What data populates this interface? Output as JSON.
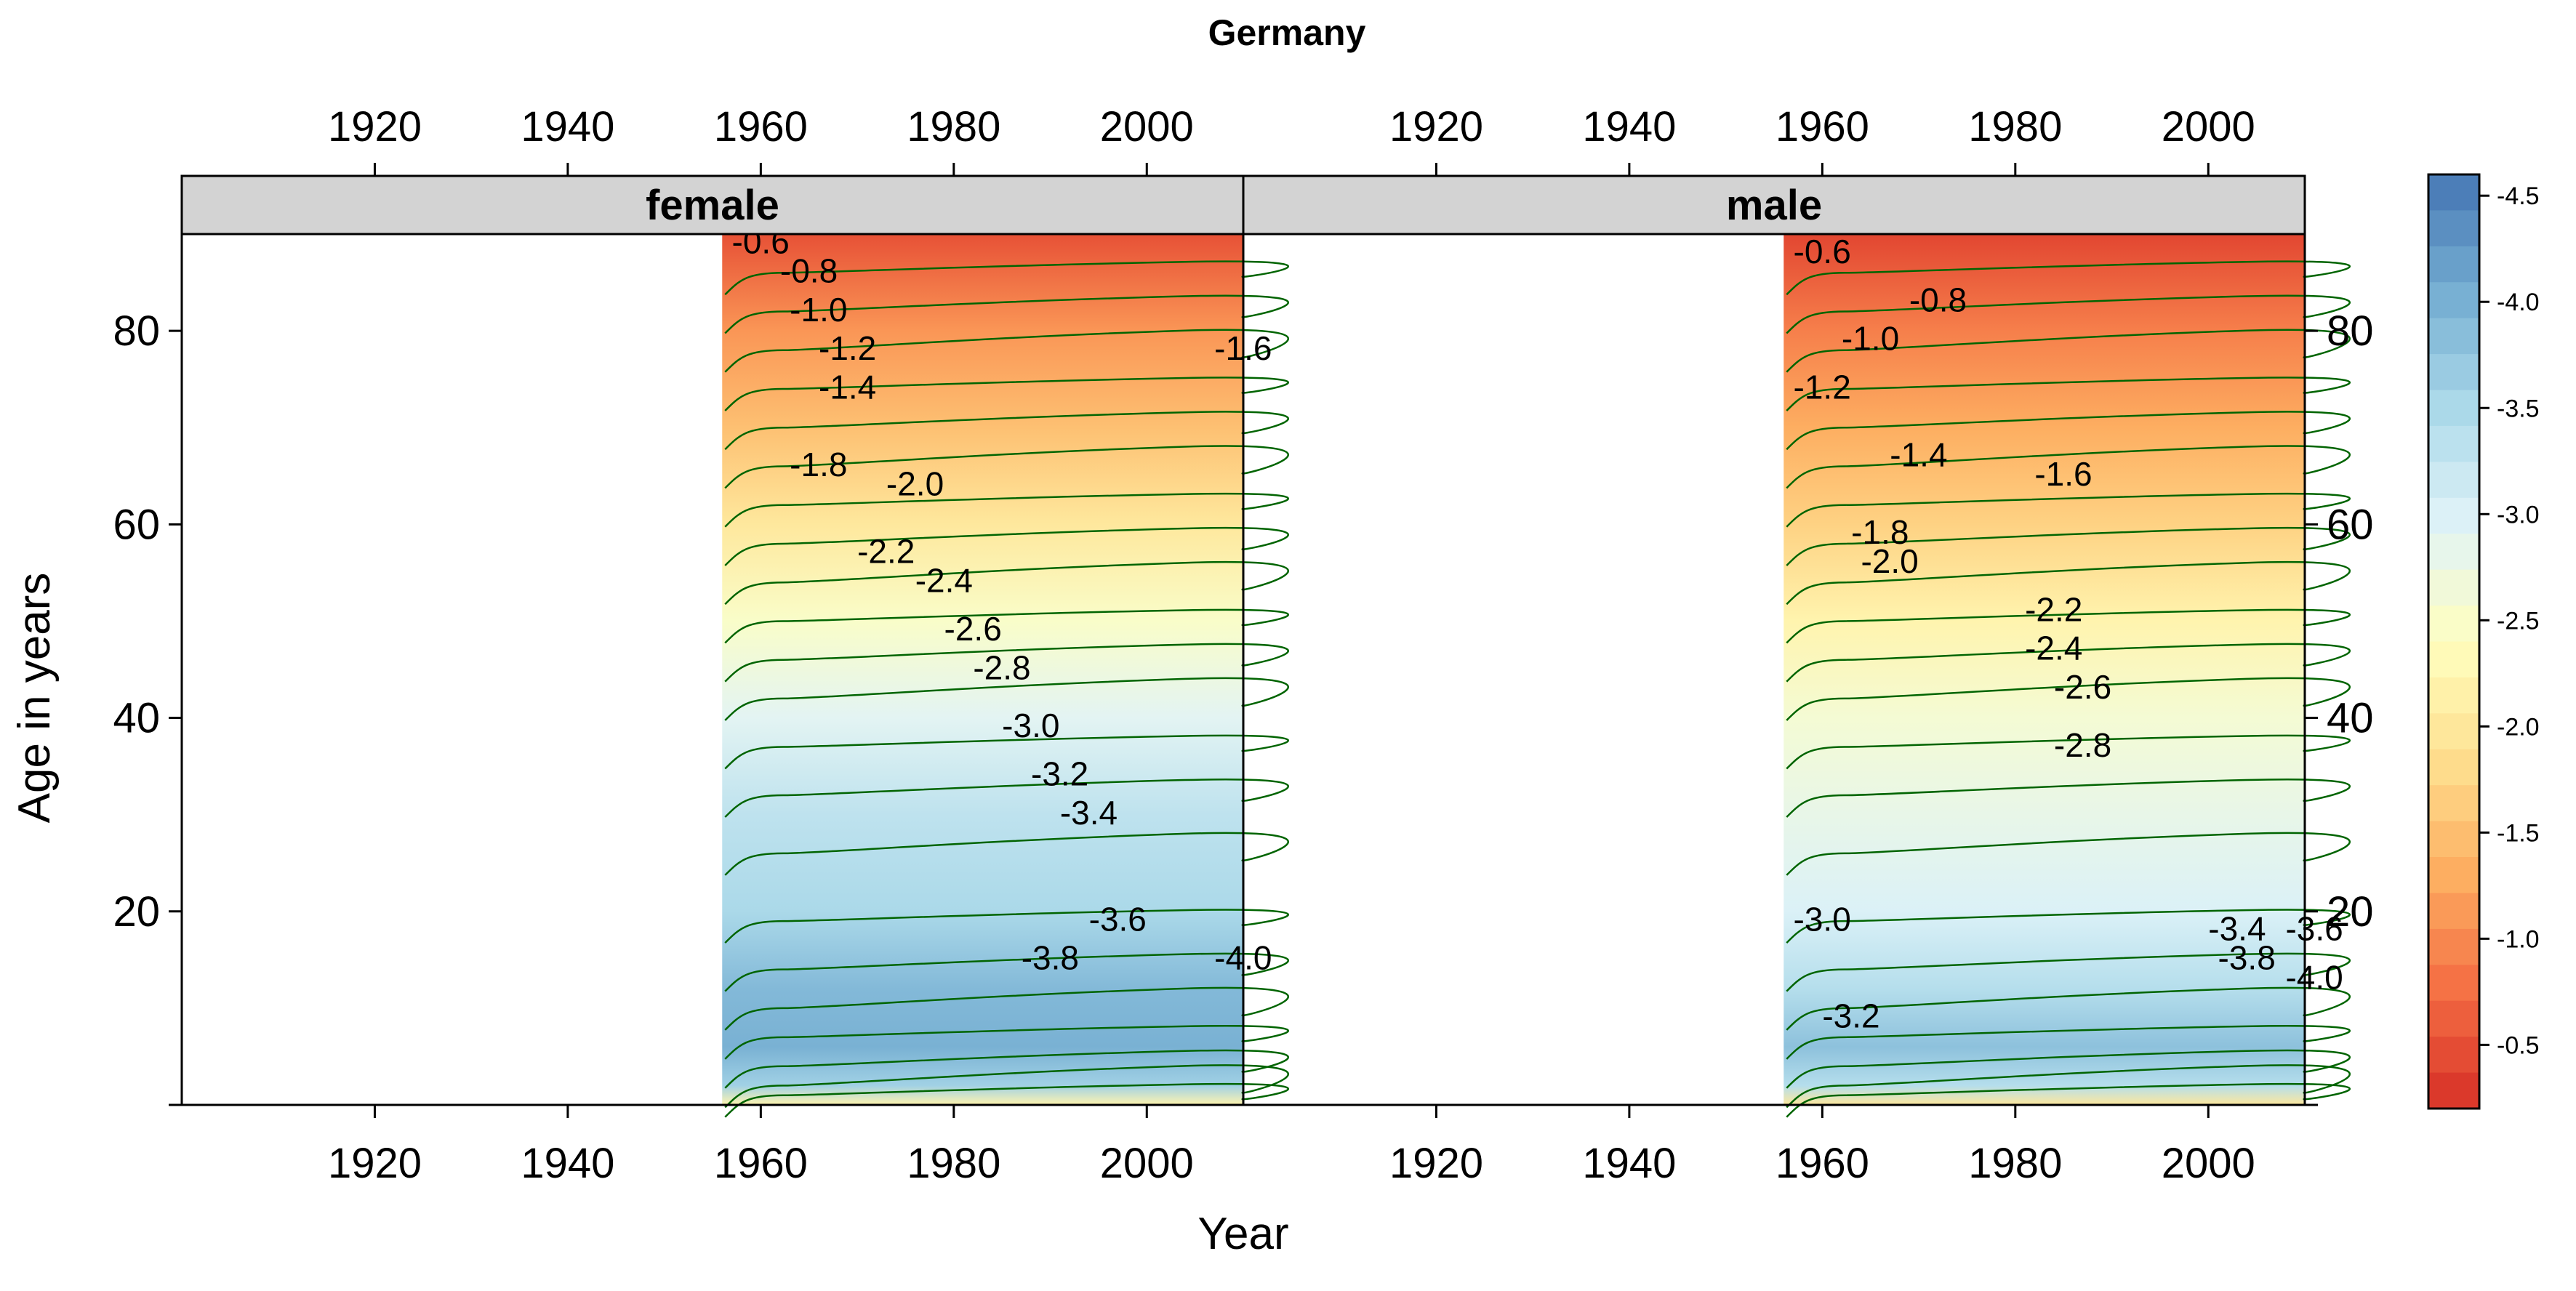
{
  "chart_data": {
    "type": "heatmap",
    "title": "Germany",
    "xlabel": "Year",
    "ylabel": "Age in years",
    "xlim": [
      1900,
      2010
    ],
    "ylim": [
      0,
      90
    ],
    "x_ticks": [
      1920,
      1940,
      1960,
      1980,
      2000
    ],
    "y_ticks": [
      20,
      40,
      60,
      80
    ],
    "data_x_range": [
      1956,
      2010
    ],
    "colorbar": {
      "range": [
        -4.6,
        -0.2
      ],
      "ticks": [
        -0.5,
        -1.0,
        -1.5,
        -2.0,
        -2.5,
        -3.0,
        -3.5,
        -4.0,
        -4.5
      ],
      "tick_labels": [
        "-0.5",
        "-1.0",
        "-1.5",
        "-2.0",
        "-2.5",
        "-3.0",
        "-3.5",
        "-4.0",
        "-4.5"
      ],
      "colors_low_to_high": [
        "#d73027",
        "#f46d43",
        "#fdae61",
        "#fee090",
        "#ffffbf",
        "#e0f3f8",
        "#abd9e9",
        "#74add1",
        "#4575b4"
      ]
    },
    "contour_color": "#006400",
    "grid": false,
    "panels": [
      {
        "name": "female",
        "contour_labels": [
          {
            "text": "-0.6",
            "x": 1957,
            "y": 88
          },
          {
            "text": "-0.8",
            "x": 1962,
            "y": 85
          },
          {
            "text": "-1.0",
            "x": 1963,
            "y": 81
          },
          {
            "text": "-1.2",
            "x": 1966,
            "y": 77
          },
          {
            "text": "-1.4",
            "x": 1966,
            "y": 73
          },
          {
            "text": "-1.6",
            "x": 2007,
            "y": 77
          },
          {
            "text": "-1.8",
            "x": 1963,
            "y": 65
          },
          {
            "text": "-2.0",
            "x": 1973,
            "y": 63
          },
          {
            "text": "-2.2",
            "x": 1970,
            "y": 56
          },
          {
            "text": "-2.4",
            "x": 1976,
            "y": 53
          },
          {
            "text": "-2.6",
            "x": 1979,
            "y": 48
          },
          {
            "text": "-2.8",
            "x": 1982,
            "y": 44
          },
          {
            "text": "-3.0",
            "x": 1985,
            "y": 38
          },
          {
            "text": "-3.2",
            "x": 1988,
            "y": 33
          },
          {
            "text": "-3.4",
            "x": 1991,
            "y": 29
          },
          {
            "text": "-3.6",
            "x": 1994,
            "y": 18
          },
          {
            "text": "-3.8",
            "x": 1987,
            "y": 14
          },
          {
            "text": "-4.0",
            "x": 2007,
            "y": 14
          }
        ]
      },
      {
        "name": "male",
        "contour_labels": [
          {
            "text": "-0.6",
            "x": 1957,
            "y": 87
          },
          {
            "text": "-0.8",
            "x": 1969,
            "y": 82
          },
          {
            "text": "-1.0",
            "x": 1962,
            "y": 78
          },
          {
            "text": "-1.2",
            "x": 1957,
            "y": 73
          },
          {
            "text": "-1.4",
            "x": 1967,
            "y": 66
          },
          {
            "text": "-1.6",
            "x": 1982,
            "y": 64
          },
          {
            "text": "-1.8",
            "x": 1963,
            "y": 58
          },
          {
            "text": "-2.0",
            "x": 1964,
            "y": 55
          },
          {
            "text": "-2.2",
            "x": 1981,
            "y": 50
          },
          {
            "text": "-2.4",
            "x": 1981,
            "y": 46
          },
          {
            "text": "-2.6",
            "x": 1984,
            "y": 42
          },
          {
            "text": "-2.8",
            "x": 1984,
            "y": 36
          },
          {
            "text": "-3.0",
            "x": 1957,
            "y": 18
          },
          {
            "text": "-3.2",
            "x": 1960,
            "y": 8
          },
          {
            "text": "-3.4",
            "x": 2000,
            "y": 17
          },
          {
            "text": "-3.6",
            "x": 2008,
            "y": 17
          },
          {
            "text": "-3.8",
            "x": 2001,
            "y": 14
          },
          {
            "text": "-4.0",
            "x": 2008,
            "y": 12
          }
        ]
      }
    ]
  }
}
